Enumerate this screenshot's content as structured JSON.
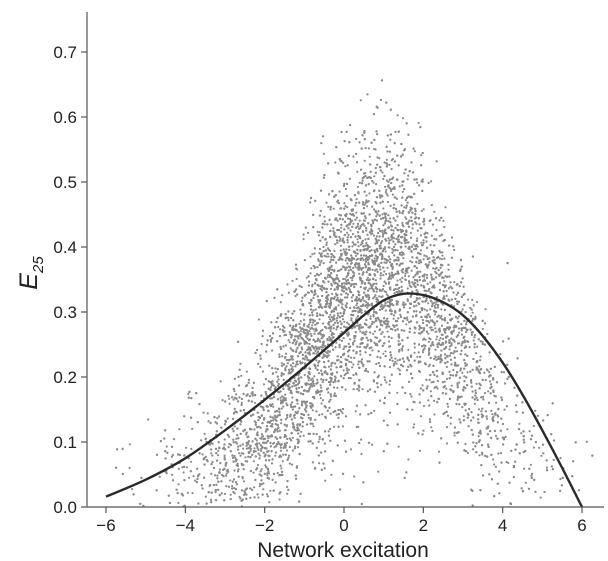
{
  "chart_data": {
    "type": "scatter",
    "xlabel": "Network excitation",
    "ylabel": {
      "main": "E",
      "subscript": "25"
    },
    "xlim": [
      -6.5,
      6.6
    ],
    "ylim": [
      0,
      0.74
    ],
    "x_ticks": [
      -6,
      -4,
      -2,
      0,
      2,
      4,
      6
    ],
    "x_tick_labels": [
      "−6",
      "−4",
      "−2",
      "0",
      "2",
      "4",
      "6"
    ],
    "y_ticks": [
      0,
      0.1,
      0.2,
      0.3,
      0.4,
      0.5,
      0.6,
      0.7
    ],
    "y_tick_labels": [
      "0.0",
      "0.1",
      "0.2",
      "0.3",
      "0.4",
      "0.5",
      "0.6",
      "0.7"
    ],
    "grid": false,
    "scatter_cloud": {
      "color": "#8a8a8a",
      "x_center": 0.3,
      "x_spread": 2.0,
      "x_range": [
        -6.0,
        6.3
      ],
      "y_range": [
        0.0,
        0.71
      ],
      "peak_mean_y": 0.33
    },
    "series": [
      {
        "type": "line",
        "color": "#2a2a2a",
        "x": [
          -6.0,
          -5.0,
          -4.0,
          -3.0,
          -2.0,
          -1.0,
          0.0,
          0.5,
          1.0,
          1.5,
          2.0,
          2.5,
          3.0,
          3.5,
          4.0,
          4.5,
          5.0,
          5.5,
          6.0
        ],
        "y": [
          0.016,
          0.042,
          0.075,
          0.118,
          0.165,
          0.215,
          0.268,
          0.295,
          0.318,
          0.328,
          0.326,
          0.315,
          0.295,
          0.263,
          0.222,
          0.173,
          0.118,
          0.06,
          0.0
        ]
      }
    ]
  }
}
